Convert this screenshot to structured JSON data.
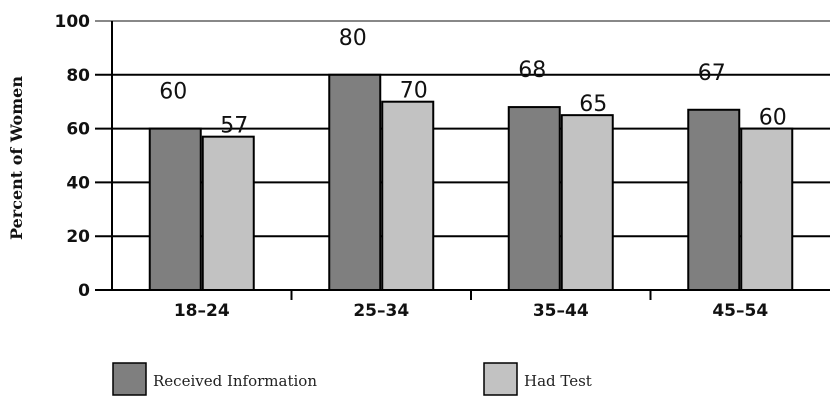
{
  "chart_data": {
    "type": "bar",
    "categories": [
      "18–24",
      "25–34",
      "35–44",
      "45–54"
    ],
    "series": [
      {
        "name": "Received Information",
        "color": "#7f7f7f",
        "values": [
          60,
          80,
          68,
          67
        ]
      },
      {
        "name": "Had Test",
        "color": "#c2c2c2",
        "values": [
          57,
          70,
          65,
          60
        ]
      }
    ],
    "ylabel": "Percent of Women",
    "xlabel": "",
    "ylim": [
      0,
      100
    ],
    "yticks": [
      "0",
      "20",
      "40",
      "60",
      "80",
      "100"
    ],
    "data_labels": [
      [
        "60",
        "80",
        "68",
        "67"
      ],
      [
        "57",
        "70",
        "65",
        "60"
      ]
    ],
    "grid": true,
    "legend": "bottom"
  }
}
